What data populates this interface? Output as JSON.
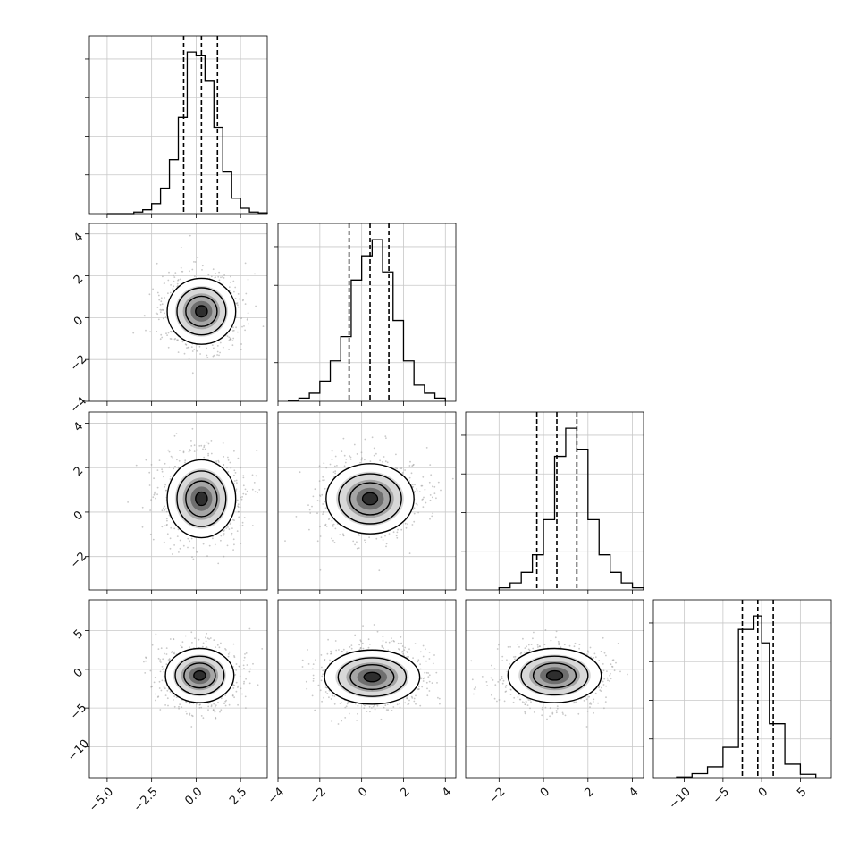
{
  "chart_data": {
    "type": "corner",
    "parameters": 4,
    "grid": true,
    "line_color": "#000000",
    "scatter_color": "#9a9a9a",
    "histograms": [
      {
        "param": 0,
        "xlim": [
          -6.0,
          4.0
        ],
        "bins": [
          -5.0,
          -4.5,
          -4.0,
          -3.5,
          -3.0,
          -2.5,
          -2.0,
          -1.5,
          -1.0,
          -0.5,
          0.0,
          0.5,
          1.0,
          1.5,
          2.0,
          2.5,
          3.0,
          3.5,
          4.0
        ],
        "counts": [
          0,
          0,
          0,
          2,
          5,
          13,
          33,
          70,
          125,
          210,
          205,
          172,
          112,
          55,
          20,
          7,
          2,
          1
        ],
        "quantiles": [
          -0.7,
          0.3,
          1.2
        ]
      },
      {
        "param": 1,
        "xlim": [
          -4.0,
          4.5
        ],
        "bins": [
          -3.5,
          -3.0,
          -2.5,
          -2.0,
          -1.5,
          -1.0,
          -0.5,
          0.0,
          0.5,
          1.0,
          1.5,
          2.0,
          2.5,
          3.0,
          3.5,
          4.0
        ],
        "counts": [
          1,
          4,
          10,
          25,
          50,
          80,
          150,
          180,
          200,
          160,
          100,
          50,
          20,
          10,
          4
        ],
        "quantiles": [
          -0.6,
          0.4,
          1.3
        ]
      },
      {
        "param": 2,
        "xlim": [
          -3.5,
          4.5
        ],
        "bins": [
          -2.0,
          -1.5,
          -1.0,
          -0.5,
          0.0,
          0.5,
          1.0,
          1.5,
          2.0,
          2.5,
          3.0,
          3.5,
          4.0,
          4.5
        ],
        "counts": [
          3,
          10,
          25,
          50,
          100,
          190,
          230,
          200,
          100,
          50,
          25,
          10,
          3
        ],
        "quantiles": [
          -0.3,
          0.6,
          1.5
        ]
      },
      {
        "param": 3,
        "xlim": [
          -14.0,
          9.0
        ],
        "bins": [
          -11.0,
          -9.0,
          -7.0,
          -5.0,
          -3.0,
          -1.0,
          0.0,
          1.0,
          3.0,
          5.0,
          7.0
        ],
        "counts": [
          1,
          6,
          16,
          45,
          220,
          240,
          200,
          80,
          20,
          5
        ],
        "quantiles": [
          -2.5,
          -0.5,
          1.5
        ]
      }
    ],
    "panels_2d": [
      {
        "x_param": 0,
        "y_param": 1,
        "center": [
          0.3,
          0.3
        ],
        "sigma": [
          1.1,
          0.9
        ]
      },
      {
        "x_param": 0,
        "y_param": 2,
        "center": [
          0.3,
          0.6
        ],
        "sigma": [
          1.1,
          1.0
        ]
      },
      {
        "x_param": 1,
        "y_param": 2,
        "center": [
          0.4,
          0.6
        ],
        "sigma": [
          1.2,
          0.9
        ]
      },
      {
        "x_param": 0,
        "y_param": 3,
        "center": [
          0.2,
          -0.8
        ],
        "sigma": [
          1.1,
          2.0
        ]
      },
      {
        "x_param": 1,
        "y_param": 3,
        "center": [
          0.5,
          -1.0
        ],
        "sigma": [
          1.3,
          2.0
        ]
      },
      {
        "x_param": 2,
        "y_param": 3,
        "center": [
          0.5,
          -0.8
        ],
        "sigma": [
          1.2,
          2.0
        ]
      }
    ],
    "axes": [
      {
        "param": 0,
        "lim": [
          -6.0,
          4.0
        ],
        "ticks": [
          -5.0,
          -2.5,
          0.0,
          2.5
        ],
        "labels": [
          "−5.0",
          "−2.5",
          "0.0",
          "2.5"
        ]
      },
      {
        "param": 1,
        "lim": [
          -4.0,
          4.5
        ],
        "ticks": [
          -4,
          -2,
          0,
          2,
          4
        ],
        "labels": [
          "−4",
          "−2",
          "0",
          "2",
          "4"
        ]
      },
      {
        "param": 2,
        "lim": [
          -3.5,
          4.5
        ],
        "ticks": [
          -2,
          0,
          2,
          4
        ],
        "labels": [
          "−2",
          "0",
          "2",
          "4"
        ]
      },
      {
        "param": 3,
        "lim": [
          -14.0,
          9.0
        ],
        "ticks": [
          -10,
          -5,
          0,
          5
        ],
        "labels": [
          "−10",
          "−5",
          "0",
          "5"
        ]
      }
    ]
  }
}
